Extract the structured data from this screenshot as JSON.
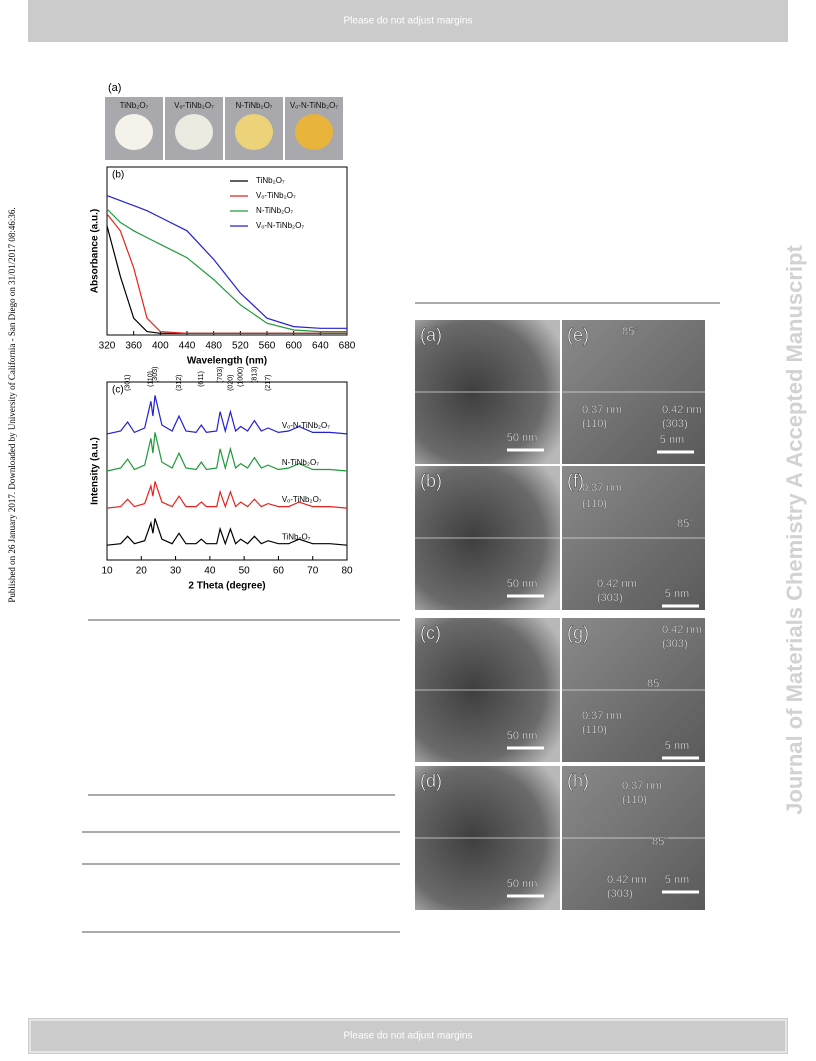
{
  "header": {
    "text": "Please do not adjust margins"
  },
  "footer": {
    "text": "Please do not adjust margins"
  },
  "sidebar_left": {
    "text": "Published on 26 January 2017. Downloaded by University of California - San Diego on 31/01/2017 08:46:36."
  },
  "sidebar_right": {
    "text": "Journal of Materials Chemistry A Accepted Manuscript"
  },
  "figure_a": {
    "label": "(a)",
    "samples": [
      "TiNb₂O₇",
      "Vₒ-TiNb₂O₇",
      "N-TiNb₂O₇",
      "Vₒ-N-TiNb₂O₇"
    ]
  },
  "chart_data": [
    {
      "type": "line",
      "label": "(b)",
      "x_label": "Wavelength (nm)",
      "y_label": "Absorbance (a.u.)",
      "x": [
        320,
        340,
        360,
        380,
        400,
        440,
        480,
        520,
        560,
        600,
        640,
        680
      ],
      "xlim": [
        320,
        680
      ],
      "xticks": [
        320,
        360,
        400,
        440,
        480,
        520,
        560,
        600,
        640,
        680
      ],
      "ylim": [
        0,
        1
      ],
      "series": [
        {
          "name": "TiNb₂O₇",
          "color": "#000000",
          "values": [
            0.65,
            0.35,
            0.1,
            0.02,
            0.01,
            0.01,
            0.01,
            0.01,
            0.01,
            0.01,
            0.01,
            0.01
          ]
        },
        {
          "name": "Vₒ-TiNb₂O₇",
          "color": "#e8231f",
          "values": [
            0.72,
            0.62,
            0.4,
            0.1,
            0.02,
            0.01,
            0.01,
            0.01,
            0.01,
            0.01,
            0.01,
            0.01
          ]
        },
        {
          "name": "N-TiNb₂O₇",
          "color": "#1f9a3a",
          "values": [
            0.75,
            0.67,
            0.62,
            0.58,
            0.54,
            0.46,
            0.33,
            0.18,
            0.07,
            0.03,
            0.02,
            0.02
          ]
        },
        {
          "name": "Vₒ-N-TiNb₂O₇",
          "color": "#2020d8",
          "values": [
            0.83,
            0.8,
            0.77,
            0.74,
            0.7,
            0.62,
            0.45,
            0.25,
            0.1,
            0.05,
            0.04,
            0.04
          ]
        }
      ]
    },
    {
      "type": "line",
      "label": "(c)",
      "x_label": "2 Theta (degree)",
      "y_label": "Intensity (a.u.)",
      "x": [
        10,
        14,
        16,
        18,
        21,
        22.8,
        23.4,
        24,
        26,
        29,
        31,
        33,
        36,
        37.5,
        39,
        42,
        43,
        44.5,
        46,
        47.5,
        49,
        51,
        53,
        55,
        57,
        60,
        63,
        66,
        70,
        75,
        80
      ],
      "xlim": [
        10,
        80
      ],
      "xticks": [
        10,
        20,
        30,
        40,
        50,
        60,
        70,
        80
      ],
      "ylim": [
        0,
        12
      ],
      "series": [
        {
          "name": "TiNb₂O₇",
          "color": "#000000",
          "values": [
            1,
            1.1,
            1.6,
            1.1,
            1.3,
            2.5,
            1.8,
            2.8,
            1.4,
            1.1,
            1.8,
            1.1,
            1.1,
            1.4,
            1.1,
            1.1,
            2.1,
            1.1,
            2.1,
            1.1,
            1.4,
            1.1,
            1.6,
            1.1,
            1.3,
            1.1,
            1.1,
            1.4,
            1.1,
            1.1,
            1
          ]
        },
        {
          "name": "Vₒ-TiNb₂O₇",
          "color": "#e8231f",
          "values": [
            3.5,
            3.6,
            4.1,
            3.6,
            3.8,
            5,
            4.3,
            5.3,
            3.9,
            3.6,
            4.3,
            3.6,
            3.6,
            3.9,
            3.6,
            3.6,
            4.6,
            3.6,
            4.6,
            3.6,
            3.9,
            3.6,
            4.1,
            3.6,
            3.8,
            3.6,
            3.6,
            3.9,
            3.6,
            3.6,
            3.5
          ]
        },
        {
          "name": "N-TiNb₂O₇",
          "color": "#1f9a3a",
          "values": [
            6,
            6.2,
            6.8,
            6.1,
            6.4,
            8.2,
            7.2,
            8.6,
            6.6,
            6.2,
            7.2,
            6.2,
            6.1,
            6.6,
            6.1,
            6.2,
            7.5,
            6.2,
            7.5,
            6.2,
            6.5,
            6.2,
            6.9,
            6.2,
            6.4,
            6.1,
            6.2,
            6.5,
            6.1,
            6.1,
            6
          ]
        },
        {
          "name": "Vₒ-N-TiNb₂O₇",
          "color": "#2020d8",
          "values": [
            8.5,
            8.7,
            9.3,
            8.6,
            8.9,
            10.7,
            9.7,
            11.1,
            9.1,
            8.7,
            9.7,
            8.7,
            8.6,
            9.1,
            8.6,
            8.7,
            10,
            8.7,
            10,
            8.7,
            9,
            8.7,
            9.4,
            8.7,
            8.9,
            8.6,
            8.7,
            9,
            8.6,
            8.6,
            8.5
          ]
        }
      ],
      "annotations": [
        {
          "text": "(301)",
          "x": 16
        },
        {
          "text": "(110)",
          "x": 22.8
        },
        {
          "text": "(303)",
          "x": 24
        },
        {
          "text": "(312)",
          "x": 31
        },
        {
          "text": "(611)",
          "x": 37.5
        },
        {
          "text": "(703)",
          "x": 43
        },
        {
          "text": "(020)",
          "x": 46
        },
        {
          "text": "(1000)",
          "x": 49
        },
        {
          "text": "(813)",
          "x": 53
        },
        {
          "text": "(217)",
          "x": 57
        }
      ]
    }
  ],
  "tem": {
    "panels": [
      {
        "label": "(a)",
        "notes": [
          "50 nm"
        ]
      },
      {
        "label": "(e)",
        "notes": [
          "85°",
          "0.37 nm",
          "(110)",
          "0.42 nm",
          "(303)",
          "5 nm"
        ]
      },
      {
        "label": "(b)",
        "notes": [
          "50 nm"
        ]
      },
      {
        "label": "(f)",
        "notes": [
          "0.37 nm",
          "(110)",
          "85°",
          "0.42 nm",
          "(303)",
          "5 nm"
        ]
      },
      {
        "label": "(c)",
        "notes": [
          "50 nm"
        ]
      },
      {
        "label": "(g)",
        "notes": [
          "0.42 nm",
          "(303)",
          "85°",
          "0.37 nm",
          "(110)",
          "5 nm"
        ]
      },
      {
        "label": "(d)",
        "notes": [
          "50 nm"
        ]
      },
      {
        "label": "(h)",
        "notes": [
          "0.37 nm",
          "(110)",
          "85°",
          "0.42 nm",
          "(303)",
          "5 nm"
        ]
      }
    ]
  }
}
